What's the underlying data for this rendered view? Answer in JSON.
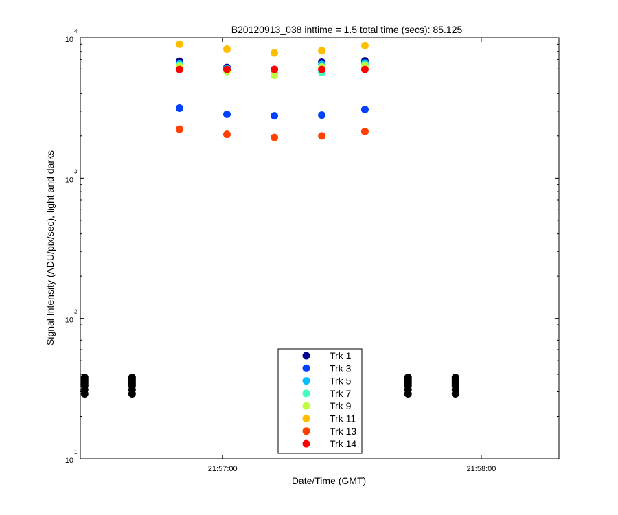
{
  "chart_data": {
    "type": "scatter",
    "title": "B20120913_038 inttime = 1.5 total time (secs): 85.125",
    "xlabel": "Date/Time (GMT)",
    "ylabel": "Signal Intensity (ADU/pix/sec), light and darks",
    "yscale": "log",
    "ylim": [
      10,
      10000
    ],
    "xlim": [
      "21:56:27",
      "21:58:18"
    ],
    "x_ticks": [
      {
        "value": "21:57:00",
        "label": "21:57:00"
      },
      {
        "value": "21:58:00",
        "label": "21:58:00"
      }
    ],
    "y_ticks": [
      {
        "value": 10,
        "base": "10",
        "exp": "1"
      },
      {
        "value": 100,
        "base": "10",
        "exp": "2"
      },
      {
        "value": 1000,
        "base": "10",
        "exp": "3"
      },
      {
        "value": 10000,
        "base": "10",
        "exp": "4"
      }
    ],
    "legend_position": "bottom-center",
    "grid": false,
    "light_times": [
      "21:56:50",
      "21:57:01",
      "21:57:12",
      "21:57:23",
      "21:57:33"
    ],
    "series": [
      {
        "name": "Trk 1",
        "color": "#00008f",
        "values": [
          6800,
          6150,
          5950,
          6700,
          6850
        ]
      },
      {
        "name": "Trk 3",
        "color": "#0040ff",
        "values": [
          3150,
          2850,
          2780,
          2810,
          3080
        ]
      },
      {
        "name": "Trk 5",
        "color": "#00bfff",
        "values": [
          6500,
          6050,
          5900,
          6450,
          6600
        ]
      },
      {
        "name": "Trk 7",
        "color": "#40ffbf",
        "values": [
          6300,
          5800,
          5600,
          5650,
          6400
        ]
      },
      {
        "name": "Trk 9",
        "color": "#bfff40",
        "values": [
          6250,
          5750,
          5400,
          6200,
          6300
        ]
      },
      {
        "name": "Trk 11",
        "color": "#ffbf00",
        "values": [
          9000,
          8300,
          7800,
          8100,
          8800
        ]
      },
      {
        "name": "Trk 13",
        "color": "#ff4000",
        "values": [
          2230,
          2050,
          1950,
          2000,
          2150
        ]
      },
      {
        "name": "Trk 14",
        "color": "#ff0000",
        "values": [
          5950,
          5950,
          5950,
          5950,
          5950
        ]
      }
    ],
    "dark_series": {
      "color": "#000000",
      "times": [
        "21:56:28",
        "21:56:39",
        "21:57:43",
        "21:57:54"
      ],
      "values": [
        29,
        31,
        33,
        34,
        35,
        36,
        37,
        38
      ]
    }
  }
}
